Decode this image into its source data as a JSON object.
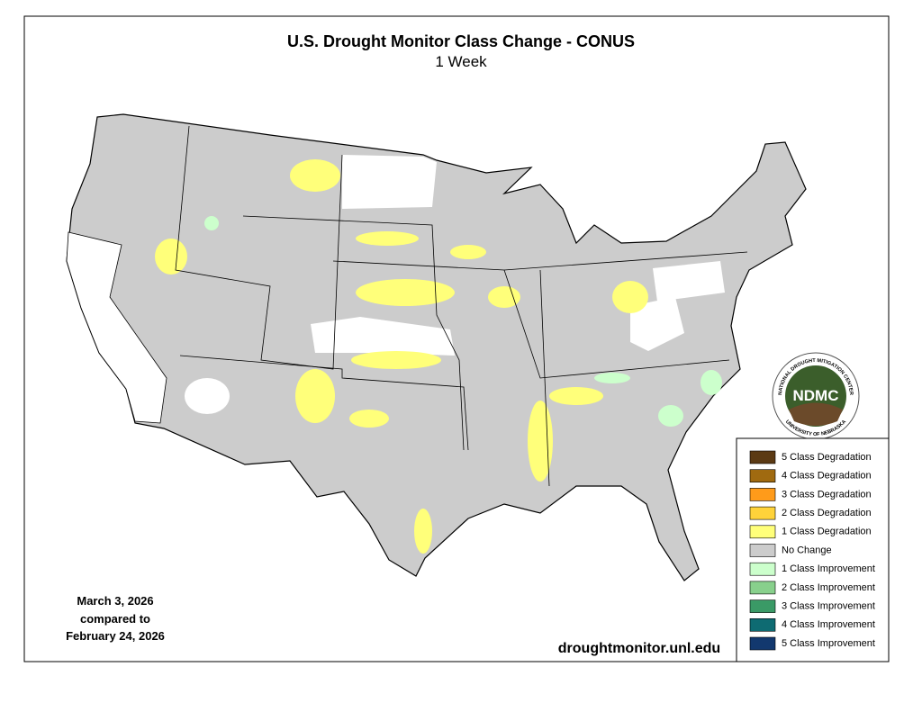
{
  "title": "U.S. Drought Monitor Class Change - CONUS",
  "subtitle": "1 Week",
  "date_note": [
    "March 3, 2026",
    "compared to",
    "February 24, 2026"
  ],
  "source_url": "droughtmonitor.unl.edu",
  "logo": {
    "acronym": "NDMC",
    "top_text": "NATIONAL DROUGHT MITIGATION CENTER",
    "bottom_text": "UNIVERSITY OF NEBRASKA"
  },
  "legend": [
    {
      "label": "5 Class Degradation",
      "color": "#5b3a14"
    },
    {
      "label": "4 Class Degradation",
      "color": "#a06a10"
    },
    {
      "label": "3 Class Degradation",
      "color": "#ff9b1a"
    },
    {
      "label": "2 Class Degradation",
      "color": "#ffd33a"
    },
    {
      "label": "1 Class Degradation",
      "color": "#ffff7a"
    },
    {
      "label": "No Change",
      "color": "#cccccc"
    },
    {
      "label": "1 Class Improvement",
      "color": "#ccffcc"
    },
    {
      "label": "2 Class Improvement",
      "color": "#88d08c"
    },
    {
      "label": "3 Class Improvement",
      "color": "#3a9a66"
    },
    {
      "label": "4 Class Improvement",
      "color": "#0e6b72"
    },
    {
      "label": "5 Class Improvement",
      "color": "#12386e"
    }
  ]
}
